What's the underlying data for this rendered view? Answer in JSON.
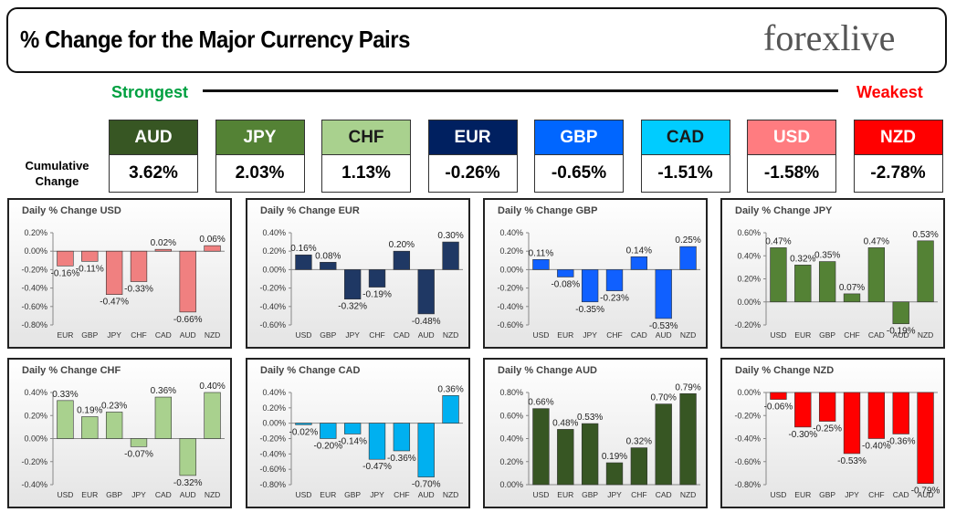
{
  "header": {
    "title": "% Change for the Major Currency Pairs",
    "logo": "forexlive"
  },
  "ranking": {
    "strongest": "Strongest",
    "weakest": "Weakest",
    "row_label": "Cumulative Change",
    "items": [
      {
        "currency": "AUD",
        "value": "3.62%",
        "color": "#375623",
        "text_color": "#ffffff"
      },
      {
        "currency": "JPY",
        "value": "2.03%",
        "color": "#548235",
        "text_color": "#ffffff"
      },
      {
        "currency": "CHF",
        "value": "1.13%",
        "color": "#a9d18e",
        "text_color": "#1a1a1a"
      },
      {
        "currency": "EUR",
        "value": "-0.26%",
        "color": "#002060",
        "text_color": "#ffffff"
      },
      {
        "currency": "GBP",
        "value": "-0.65%",
        "color": "#0066ff",
        "text_color": "#ffffff"
      },
      {
        "currency": "CAD",
        "value": "-1.51%",
        "color": "#00ccff",
        "text_color": "#1a1a1a"
      },
      {
        "currency": "USD",
        "value": "-1.58%",
        "color": "#ff7c80",
        "text_color": "#ffffff"
      },
      {
        "currency": "NZD",
        "value": "-2.78%",
        "color": "#ff0000",
        "text_color": "#ffffff"
      }
    ]
  },
  "chart_data": [
    {
      "type": "bar",
      "title": "Daily % Change USD",
      "color": "#f08080",
      "categories": [
        "EUR",
        "GBP",
        "JPY",
        "CHF",
        "CAD",
        "AUD",
        "NZD"
      ],
      "values": [
        -0.16,
        -0.11,
        -0.47,
        -0.33,
        0.02,
        -0.66,
        0.06
      ],
      "value_labels": [
        "-0.16%",
        "-0.11%",
        "-0.47%",
        "-0.33%",
        "0.02%",
        "-0.66%",
        "0.06%"
      ],
      "ylim": [
        -0.8,
        0.2
      ],
      "yticks": [
        {
          "value": 0.2,
          "label": "0.20%"
        },
        {
          "value": 0,
          "label": "0.00%"
        },
        {
          "value": -0.2,
          "label": "-0.20%"
        },
        {
          "value": -0.4,
          "label": "-0.40%"
        },
        {
          "value": -0.6,
          "label": "-0.60%"
        },
        {
          "value": -0.8,
          "label": "-0.80%"
        }
      ]
    },
    {
      "type": "bar",
      "title": "Daily % Change EUR",
      "color": "#1f3864",
      "categories": [
        "USD",
        "GBP",
        "JPY",
        "CHF",
        "CAD",
        "AUD",
        "NZD"
      ],
      "values": [
        0.16,
        0.08,
        -0.32,
        -0.19,
        0.2,
        -0.48,
        0.3
      ],
      "value_labels": [
        "0.16%",
        "0.08%",
        "-0.32%",
        "-0.19%",
        "0.20%",
        "-0.48%",
        "0.30%"
      ],
      "ylim": [
        -0.6,
        0.4
      ],
      "yticks": [
        {
          "value": 0.4,
          "label": "0.40%"
        },
        {
          "value": 0.2,
          "label": "0.20%"
        },
        {
          "value": 0,
          "label": "0.00%"
        },
        {
          "value": -0.2,
          "label": "-0.20%"
        },
        {
          "value": -0.4,
          "label": "-0.40%"
        },
        {
          "value": -0.6,
          "label": "-0.60%"
        }
      ]
    },
    {
      "type": "bar",
      "title": "Daily % Change GBP",
      "color": "#1060ff",
      "categories": [
        "USD",
        "EUR",
        "JPY",
        "CHF",
        "CAD",
        "AUD",
        "NZD"
      ],
      "values": [
        0.11,
        -0.08,
        -0.35,
        -0.23,
        0.14,
        -0.53,
        0.25
      ],
      "value_labels": [
        "0.11%",
        "-0.08%",
        "-0.35%",
        "-0.23%",
        "0.14%",
        "-0.53%",
        "0.25%"
      ],
      "ylim": [
        -0.6,
        0.4
      ],
      "yticks": [
        {
          "value": 0.4,
          "label": "0.40%"
        },
        {
          "value": 0.2,
          "label": "0.20%"
        },
        {
          "value": 0,
          "label": "0.00%"
        },
        {
          "value": -0.2,
          "label": "-0.20%"
        },
        {
          "value": -0.4,
          "label": "-0.40%"
        },
        {
          "value": -0.6,
          "label": "-0.60%"
        }
      ]
    },
    {
      "type": "bar",
      "title": "Daily % Change JPY",
      "color": "#548235",
      "categories": [
        "USD",
        "EUR",
        "GBP",
        "CHF",
        "CAD",
        "AUD",
        "NZD"
      ],
      "values": [
        0.47,
        0.32,
        0.35,
        0.07,
        0.47,
        -0.19,
        0.53
      ],
      "value_labels": [
        "0.47%",
        "0.32%",
        "0.35%",
        "0.07%",
        "0.47%",
        "-0.19%",
        "0.53%"
      ],
      "ylim": [
        -0.2,
        0.6
      ],
      "yticks": [
        {
          "value": 0.6,
          "label": "0.60%"
        },
        {
          "value": 0.4,
          "label": "0.40%"
        },
        {
          "value": 0.2,
          "label": "0.20%"
        },
        {
          "value": 0,
          "label": "0.00%"
        },
        {
          "value": -0.2,
          "label": "-0.20%"
        }
      ]
    },
    {
      "type": "bar",
      "title": "Daily % Change CHF",
      "color": "#a9d18e",
      "categories": [
        "USD",
        "EUR",
        "GBP",
        "JPY",
        "CAD",
        "AUD",
        "NZD"
      ],
      "values": [
        0.33,
        0.19,
        0.23,
        -0.07,
        0.36,
        -0.32,
        0.4
      ],
      "value_labels": [
        "0.33%",
        "0.19%",
        "0.23%",
        "-0.07%",
        "0.36%",
        "-0.32%",
        "0.40%"
      ],
      "ylim": [
        -0.4,
        0.4
      ],
      "yticks": [
        {
          "value": 0.4,
          "label": "0.40%"
        },
        {
          "value": 0.2,
          "label": "0.20%"
        },
        {
          "value": 0,
          "label": "0.00%"
        },
        {
          "value": -0.2,
          "label": "-0.20%"
        },
        {
          "value": -0.4,
          "label": "-0.40%"
        }
      ]
    },
    {
      "type": "bar",
      "title": "Daily % Change CAD",
      "color": "#00b0f0",
      "categories": [
        "USD",
        "EUR",
        "GBP",
        "JPY",
        "CHF",
        "AUD",
        "NZD"
      ],
      "values": [
        -0.02,
        -0.2,
        -0.14,
        -0.47,
        -0.36,
        -0.7,
        0.36
      ],
      "value_labels": [
        "-0.02%",
        "-0.20%",
        "-0.14%",
        "-0.47%",
        "-0.36%",
        "-0.70%",
        "0.36%"
      ],
      "ylim": [
        -0.8,
        0.4
      ],
      "yticks": [
        {
          "value": 0.4,
          "label": "0.40%"
        },
        {
          "value": 0.2,
          "label": "0.20%"
        },
        {
          "value": 0,
          "label": "0.00%"
        },
        {
          "value": -0.2,
          "label": "-0.20%"
        },
        {
          "value": -0.4,
          "label": "-0.40%"
        },
        {
          "value": -0.6,
          "label": "-0.60%"
        },
        {
          "value": -0.8,
          "label": "-0.80%"
        }
      ]
    },
    {
      "type": "bar",
      "title": "Daily % Change AUD",
      "color": "#375623",
      "categories": [
        "USD",
        "EUR",
        "GBP",
        "JPY",
        "CHF",
        "CAD",
        "NZD"
      ],
      "values": [
        0.66,
        0.48,
        0.53,
        0.19,
        0.32,
        0.7,
        0.79
      ],
      "value_labels": [
        "0.66%",
        "0.48%",
        "0.53%",
        "0.19%",
        "0.32%",
        "0.70%",
        "0.79%"
      ],
      "ylim": [
        0,
        0.8
      ],
      "yticks": [
        {
          "value": 0.8,
          "label": "0.80%"
        },
        {
          "value": 0.6,
          "label": "0.60%"
        },
        {
          "value": 0.4,
          "label": "0.40%"
        },
        {
          "value": 0.2,
          "label": "0.20%"
        },
        {
          "value": 0,
          "label": "0.00%"
        }
      ]
    },
    {
      "type": "bar",
      "title": "Daily % Change NZD",
      "color": "#ff0000",
      "categories": [
        "USD",
        "EUR",
        "GBP",
        "JPY",
        "CHF",
        "CAD",
        "AUD"
      ],
      "values": [
        -0.06,
        -0.3,
        -0.25,
        -0.53,
        -0.4,
        -0.36,
        -0.79
      ],
      "value_labels": [
        "-0.06%",
        "-0.30%",
        "-0.25%",
        "-0.53%",
        "-0.40%",
        "-0.36%",
        "-0.79%"
      ],
      "ylim": [
        -0.8,
        0
      ],
      "yticks": [
        {
          "value": 0,
          "label": "0.00%"
        },
        {
          "value": -0.2,
          "label": "-0.20%"
        },
        {
          "value": -0.4,
          "label": "-0.40%"
        },
        {
          "value": -0.6,
          "label": "-0.60%"
        },
        {
          "value": -0.8,
          "label": "-0.80%"
        }
      ]
    }
  ]
}
